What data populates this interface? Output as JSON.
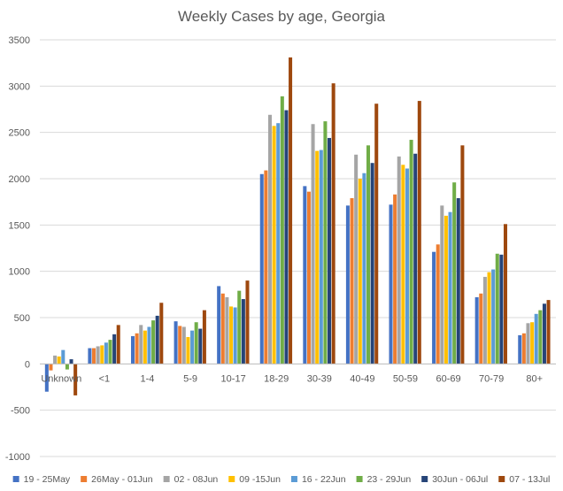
{
  "chart_data": {
    "type": "bar",
    "title": "Weekly Cases by age, Georgia",
    "xlabel": "",
    "ylabel": "",
    "ylim": [
      -1000,
      3500
    ],
    "yticks": [
      -1000,
      -500,
      0,
      500,
      1000,
      1500,
      2000,
      2500,
      3000,
      3500
    ],
    "grid": true,
    "legend_position": "bottom",
    "categories": [
      "Unknown",
      "<1",
      "1-4",
      "5-9",
      "10-17",
      "18-29",
      "30-39",
      "40-49",
      "50-59",
      "60-69",
      "70-79",
      "80+"
    ],
    "series": [
      {
        "name": "19 - 25May",
        "color": "#4472C4",
        "values": [
          -300,
          170,
          300,
          460,
          840,
          2050,
          1920,
          1710,
          1720,
          1210,
          720,
          310
        ]
      },
      {
        "name": "26May - 01Jun",
        "color": "#ED7D31",
        "values": [
          -70,
          170,
          330,
          410,
          760,
          2090,
          1860,
          1790,
          1830,
          1290,
          760,
          330
        ]
      },
      {
        "name": "02 - 08Jun",
        "color": "#A5A5A5",
        "values": [
          90,
          190,
          420,
          400,
          720,
          2690,
          2590,
          2260,
          2240,
          1710,
          940,
          440
        ]
      },
      {
        "name": "09 -15Jun",
        "color": "#FFC000",
        "values": [
          80,
          200,
          360,
          290,
          620,
          2570,
          2300,
          2000,
          2150,
          1600,
          990,
          450
        ]
      },
      {
        "name": "16 - 22Jun",
        "color": "#5B9BD5",
        "values": [
          150,
          230,
          400,
          360,
          610,
          2600,
          2310,
          2060,
          2110,
          1640,
          1020,
          540
        ]
      },
      {
        "name": "23 - 29Jun",
        "color": "#70AD47",
        "values": [
          -60,
          260,
          470,
          450,
          790,
          2890,
          2620,
          2360,
          2420,
          1960,
          1190,
          580
        ]
      },
      {
        "name": "30Jun - 06Jul",
        "color": "#264478",
        "values": [
          50,
          320,
          520,
          380,
          700,
          2740,
          2440,
          2170,
          2270,
          1790,
          1180,
          650
        ]
      },
      {
        "name": "07 - 13Jul",
        "color": "#9E480E",
        "values": [
          -340,
          420,
          660,
          580,
          900,
          3310,
          3030,
          2810,
          2840,
          2360,
          1510,
          690
        ]
      }
    ]
  }
}
